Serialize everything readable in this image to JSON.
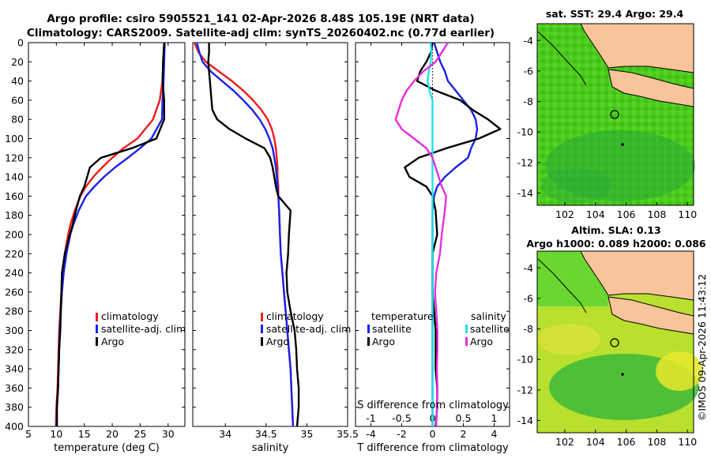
{
  "header": {
    "title_line1": "Argo profile: csiro 5905521_141 02-Apr-2026 8.48S 105.19E (NRT data)",
    "title_line2": "Climatology: CARS2009. Satellite-adj clim: synTS_20260402.nc (0.77d earlier)"
  },
  "footer": {
    "credit": "©IMOS 09-Apr-2026 11:43:12"
  },
  "colors": {
    "climatology": "#ee1c1c",
    "satellite": "#1a22e8",
    "argo": "#000000",
    "satellite_s": "#22e0e6",
    "argo_s": "#e62ee0",
    "land": "#f9c49a"
  },
  "chart_data": [
    {
      "type": "line",
      "id": "temperature_profile",
      "xlabel": "temperature (deg C)",
      "ylabel": "depth (m)",
      "xlim": [
        5,
        33
      ],
      "ylim": [
        400,
        0
      ],
      "xticks": [
        "5",
        "10",
        "15",
        "20",
        "25",
        "30"
      ],
      "yticks": [
        "0",
        "20",
        "40",
        "60",
        "80",
        "100",
        "120",
        "140",
        "160",
        "180",
        "200",
        "220",
        "240",
        "260",
        "280",
        "300",
        "320",
        "340",
        "360",
        "380",
        "400"
      ],
      "depth": [
        0,
        20,
        40,
        60,
        80,
        100,
        110,
        120,
        130,
        140,
        150,
        160,
        175,
        190,
        200,
        220,
        240,
        260,
        280,
        300,
        320,
        340,
        360,
        380,
        400
      ],
      "series": [
        {
          "name": "climatology",
          "values": [
            29.3,
            29.2,
            29.0,
            28.5,
            27.3,
            24.5,
            22.0,
            20.0,
            18.2,
            16.6,
            15.3,
            14.3,
            13.3,
            12.5,
            12.1,
            11.5,
            11.1,
            10.9,
            10.7,
            10.5,
            10.4,
            10.3,
            10.2,
            10.0,
            9.9
          ]
        },
        {
          "name": "satellite-adj. clim",
          "values": [
            29.4,
            29.3,
            29.2,
            29.0,
            28.9,
            27.0,
            25.0,
            22.8,
            20.5,
            18.5,
            16.8,
            15.3,
            14.0,
            13.0,
            12.5,
            11.8,
            11.3,
            11.0,
            10.8,
            10.6,
            10.5,
            10.4,
            10.3,
            10.1,
            10.0
          ]
        },
        {
          "name": "Argo",
          "values": [
            29.3,
            29.1,
            29.0,
            29.3,
            29.3,
            27.9,
            23.5,
            18.0,
            16.0,
            15.5,
            15.0,
            14.2,
            13.5,
            12.9,
            12.4,
            11.5,
            11.0,
            10.9,
            10.8,
            10.7,
            10.5,
            10.4,
            10.3,
            10.1,
            10.1
          ]
        }
      ],
      "legend": {
        "position": "middle-right",
        "entries": [
          "climatology",
          "satellite-adj. clim",
          "Argo"
        ]
      }
    },
    {
      "type": "line",
      "id": "salinity_profile",
      "xlabel": "salinity",
      "xlim": [
        33.6,
        35.5
      ],
      "ylim": [
        400,
        0
      ],
      "xticks": [
        "34",
        "34.5",
        "35",
        "35.5"
      ],
      "depth": [
        0,
        10,
        20,
        30,
        40,
        50,
        60,
        70,
        80,
        90,
        100,
        110,
        120,
        130,
        140,
        150,
        160,
        175,
        200,
        220,
        240,
        260,
        280,
        300,
        320,
        340,
        360,
        380,
        400
      ],
      "series": [
        {
          "name": "climatology",
          "values": [
            33.62,
            33.67,
            33.76,
            33.92,
            34.08,
            34.22,
            34.34,
            34.44,
            34.52,
            34.57,
            34.6,
            34.62,
            34.63,
            34.64,
            34.64,
            34.65,
            34.65,
            34.66,
            34.67,
            34.68,
            34.7,
            34.72,
            34.74,
            34.76,
            34.78,
            34.8,
            34.81,
            34.82,
            34.83
          ]
        },
        {
          "name": "satellite-adj. clim",
          "values": [
            33.65,
            33.68,
            33.72,
            33.82,
            33.96,
            34.1,
            34.22,
            34.33,
            34.42,
            34.49,
            34.54,
            34.58,
            34.6,
            34.62,
            34.63,
            34.64,
            34.65,
            34.66,
            34.67,
            34.68,
            34.7,
            34.72,
            34.74,
            34.76,
            34.78,
            34.8,
            34.81,
            34.82,
            34.83
          ]
        },
        {
          "name": "Argo",
          "values": [
            33.8,
            33.8,
            33.79,
            33.8,
            33.81,
            33.82,
            33.83,
            33.84,
            33.9,
            34.05,
            34.25,
            34.48,
            34.55,
            34.58,
            34.6,
            34.62,
            34.65,
            34.8,
            34.78,
            34.77,
            34.75,
            34.76,
            34.8,
            34.85,
            34.87,
            34.88,
            34.9,
            34.9,
            34.88
          ]
        }
      ],
      "legend": {
        "position": "middle-right",
        "entries": [
          "climatology",
          "satellite-adj. clim",
          "Argo"
        ]
      }
    },
    {
      "type": "line",
      "id": "difference_profile",
      "xlabel": "T difference from climatology",
      "xlabel_top": "S difference from climatology",
      "t_xlim": [
        -5,
        5
      ],
      "s_xlim": [
        -1.25,
        1.25
      ],
      "ylim": [
        400,
        0
      ],
      "t_xticks": [
        "-4",
        "-2",
        "0",
        "2",
        "4"
      ],
      "s_xticks": [
        "-1",
        "-0.5",
        "0",
        "0.5",
        "1"
      ],
      "depth": [
        0,
        10,
        20,
        30,
        40,
        50,
        60,
        70,
        80,
        90,
        100,
        110,
        120,
        130,
        140,
        150,
        160,
        175,
        200,
        220,
        240,
        260,
        280,
        300,
        320,
        340,
        360,
        380,
        400
      ],
      "series": [
        {
          "name": "temperature satellite",
          "axis": "T",
          "values": [
            0.1,
            0.3,
            0.5,
            0.8,
            1.0,
            1.5,
            2.0,
            2.5,
            2.8,
            2.9,
            2.8,
            2.5,
            2.3,
            1.5,
            0.8,
            0.3,
            0.1,
            0.0,
            0.0,
            0.0,
            0.0,
            0.0,
            0.0,
            0.0,
            0.0,
            0.0,
            0.0,
            0.0,
            0.0
          ]
        },
        {
          "name": "temperature Argo",
          "axis": "T",
          "values": [
            0.0,
            -0.1,
            -0.4,
            -0.8,
            -1.0,
            0.2,
            1.8,
            2.6,
            3.6,
            4.4,
            3.0,
            0.9,
            -0.9,
            -1.8,
            -1.5,
            -0.4,
            0.0,
            0.2,
            0.3,
            0.0,
            0.0,
            0.0,
            0.1,
            0.2,
            0.2,
            0.2,
            0.3,
            0.3,
            0.2
          ]
        },
        {
          "name": "salinity satellite",
          "axis": "S",
          "values": [
            -0.03,
            -0.02,
            -0.03,
            -0.06,
            -0.08,
            -0.05,
            0.0,
            0.0,
            0.0,
            0.0,
            0.0,
            0.0,
            0.0,
            0.0,
            0.0,
            0.0,
            0.0,
            0.0,
            0.0,
            0.0,
            0.0,
            0.0,
            0.0,
            0.0,
            0.0,
            0.0,
            0.0,
            0.0,
            0.0
          ]
        },
        {
          "name": "salinity Argo",
          "axis": "S",
          "values": [
            0.25,
            0.15,
            0.05,
            -0.15,
            -0.3,
            -0.42,
            -0.5,
            -0.55,
            -0.6,
            -0.5,
            -0.3,
            -0.1,
            0.0,
            0.05,
            0.1,
            0.15,
            0.22,
            0.2,
            0.15,
            0.12,
            0.06,
            0.04,
            0.06,
            0.08,
            0.08,
            0.07,
            0.08,
            0.07,
            0.06
          ]
        }
      ],
      "legend": {
        "temperature_title": "temperature",
        "salinity_title": "salinity",
        "t_entries": [
          "satellite",
          "Argo"
        ],
        "s_entries": [
          "satellite",
          "Argo"
        ]
      }
    }
  ],
  "maps": [
    {
      "id": "sst_map",
      "title": "sat. SST: 29.4 Argo: 29.4",
      "xticks": [
        "102",
        "104",
        "106",
        "108",
        "110"
      ],
      "yticks": [
        "-4",
        "-6",
        "-8",
        "-10",
        "-12",
        "-14"
      ],
      "xlim": [
        100.2,
        110.4
      ],
      "ylim": [
        -14.8,
        -2.9
      ],
      "float_position": {
        "lon": 105.19,
        "lat": -8.48
      }
    },
    {
      "id": "sla_map",
      "title_line1": "Altim. SLA: 0.13",
      "title_line2": "Argo h1000: 0.089 h2000: 0.086",
      "xticks": [
        "102",
        "104",
        "106",
        "108",
        "110"
      ],
      "yticks": [
        "-4",
        "-6",
        "-8",
        "-10",
        "-12",
        "-14"
      ],
      "xlim": [
        100.2,
        110.4
      ],
      "ylim": [
        -14.8,
        -2.9
      ],
      "float_position": {
        "lon": 105.19,
        "lat": -8.48
      }
    }
  ]
}
